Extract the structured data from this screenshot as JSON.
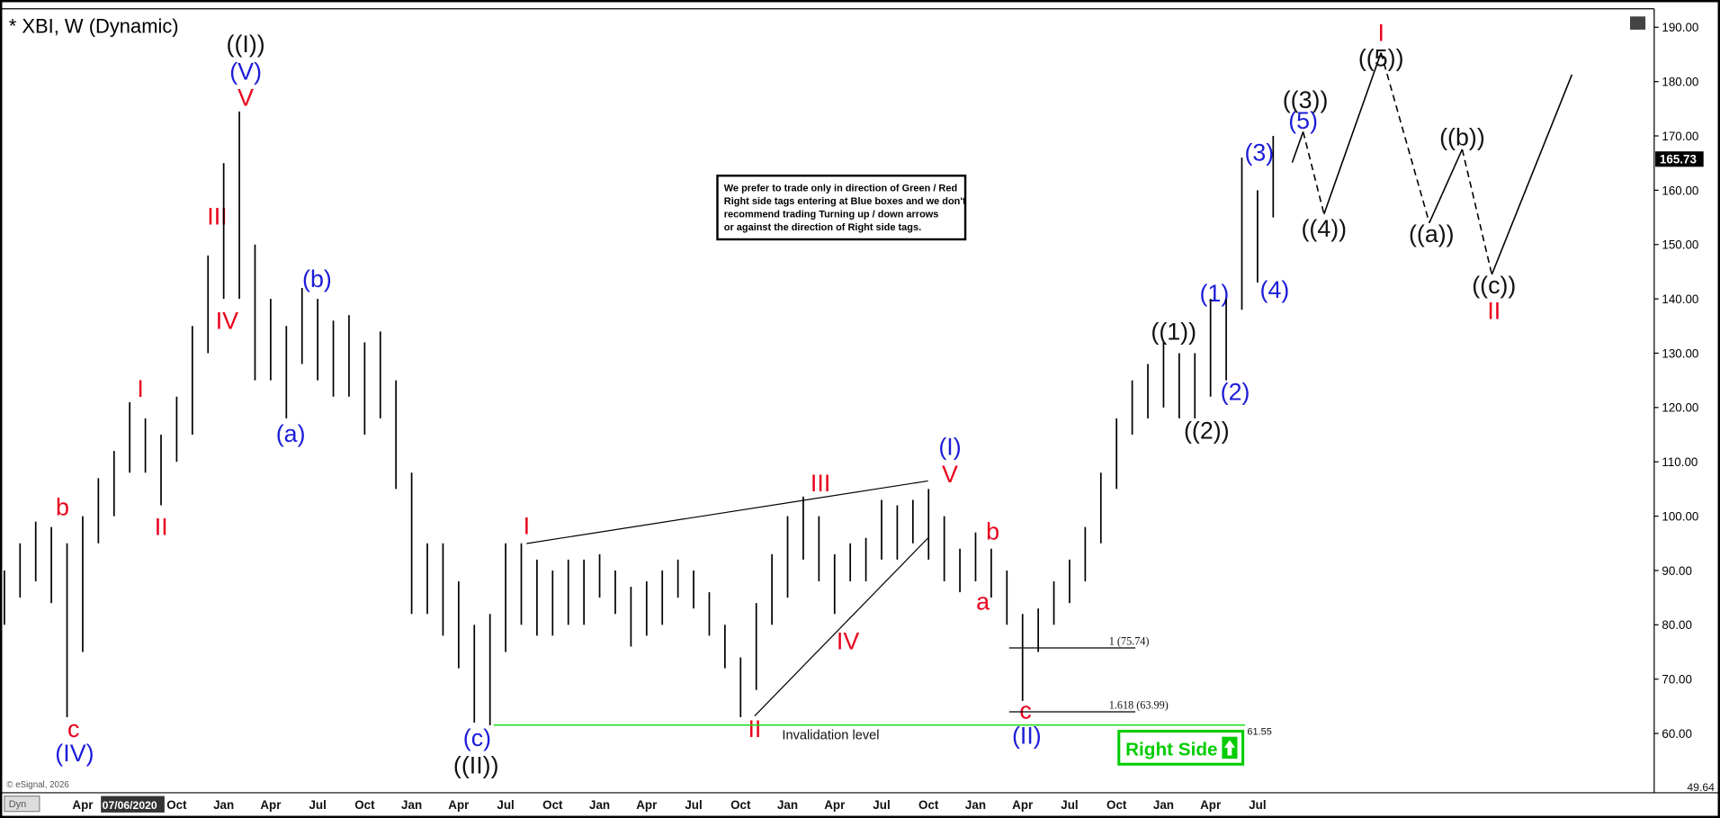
{
  "chart_data": {
    "type": "ohlc",
    "title": "* XBI, W (Dynamic)",
    "categories": [
      null,
      null,
      null,
      null,
      null,
      "Apr",
      null,
      null,
      "07/06/2020",
      null,
      null,
      "Oct",
      null,
      null,
      "Jan",
      null,
      null,
      "Apr",
      null,
      null,
      "Jul",
      null,
      null,
      "Oct",
      null,
      null,
      "Jan",
      null,
      null,
      "Apr",
      null,
      null,
      "Jul",
      null,
      null,
      "Oct",
      null,
      null,
      "Jan",
      null,
      null,
      "Apr",
      null,
      null,
      "Jul",
      null,
      null,
      "Oct",
      null,
      null,
      "Jan",
      null,
      null,
      "Apr",
      null,
      null,
      "Jul",
      null,
      null,
      "Oct",
      null,
      null,
      "Jan",
      null,
      null,
      "Apr",
      null,
      null,
      "Jul",
      null,
      null,
      "Oct",
      null,
      null,
      "Jan",
      null,
      null,
      "Apr",
      null,
      null,
      "Jul",
      null
    ],
    "high": [
      90,
      95,
      99,
      98,
      95,
      100,
      107,
      112,
      121,
      118,
      115,
      122,
      135,
      148,
      165,
      174.5,
      150,
      140,
      135,
      142,
      140,
      136,
      137,
      132,
      134,
      125,
      108,
      95,
      95,
      88,
      80,
      82,
      95,
      95,
      92,
      90,
      92,
      92,
      93,
      90,
      87,
      88,
      90,
      92,
      90,
      86,
      80,
      74,
      84,
      93,
      100,
      103.6,
      100,
      93,
      95,
      96,
      103,
      102,
      103,
      105,
      100,
      94,
      97,
      94,
      90,
      82,
      83,
      88,
      92,
      98,
      108,
      118,
      125,
      128,
      132,
      130,
      130,
      140,
      140,
      166,
      160,
      170
    ],
    "low": [
      80,
      85,
      88,
      84,
      63,
      75,
      95,
      100,
      108,
      108,
      102,
      110,
      115,
      130,
      140,
      140,
      125,
      125,
      118,
      128,
      125,
      122,
      122,
      115,
      118,
      105,
      82,
      82,
      78,
      72,
      62,
      61.5,
      75,
      80,
      78,
      78,
      80,
      80,
      85,
      82,
      76,
      78,
      80,
      85,
      83,
      78,
      72,
      63,
      68,
      80,
      85,
      92,
      88,
      82,
      88,
      88,
      92,
      92,
      95,
      92,
      88,
      86,
      88,
      85,
      80,
      66,
      75,
      80,
      84,
      88,
      95,
      105,
      115,
      118,
      120,
      118,
      118,
      122,
      125,
      138,
      143,
      155
    ],
    "color": "#000000",
    "ylim": [
      50.5,
      193.4
    ],
    "yticks": [
      {
        "value": 60,
        "label": "60.00"
      },
      {
        "value": 70,
        "label": "70.00"
      },
      {
        "value": 80,
        "label": "80.00"
      },
      {
        "value": 90,
        "label": "90.00"
      },
      {
        "value": 100,
        "label": "100.00"
      },
      {
        "value": 110,
        "label": "110.00"
      },
      {
        "value": 120,
        "label": "120.00"
      },
      {
        "value": 130,
        "label": "130.00"
      },
      {
        "value": 140,
        "label": "140.00"
      },
      {
        "value": 150,
        "label": "150.00"
      },
      {
        "value": 160,
        "label": "160.00"
      },
      {
        "value": 170,
        "label": "170.00"
      },
      {
        "value": 180,
        "label": "180.00"
      },
      {
        "value": 190,
        "label": "190.00"
      }
    ],
    "last_price": 165.73,
    "cursor_price": 49.64,
    "levels": [
      {
        "value": 75.74,
        "label": "1 (75.74)"
      },
      {
        "value": 63.99,
        "label": "1.618 (63.99)"
      }
    ],
    "invalidation": {
      "value": 61.55,
      "label": "Invalidation level",
      "color": "#22dd22"
    },
    "annotations": [
      "((I))",
      "(V)",
      "V",
      "III",
      "IV",
      "I",
      "II",
      "b",
      "c",
      "(IV)",
      "(b)",
      "(a)",
      "(c)",
      "((II))",
      "I",
      "II",
      "III",
      "IV",
      "(I)",
      "V",
      "b",
      "a",
      "c",
      "(II)",
      "((1))",
      "((2))",
      "(1)",
      "(2)",
      "(3)",
      "(4)",
      "(5)",
      "((3))",
      "((4))",
      "I",
      "((5))",
      "((b))",
      "((a))",
      "((c))",
      "II"
    ],
    "note": [
      "We prefer to trade only in direction of Green / Red",
      "Right side tags entering at Blue boxes and we don't",
      "recommend trading Turning up / down arrows",
      "or against the direction of Right side tags."
    ],
    "badge": "Right Side",
    "copyright": "© eSignal, 2026",
    "corner": "Dyn"
  }
}
